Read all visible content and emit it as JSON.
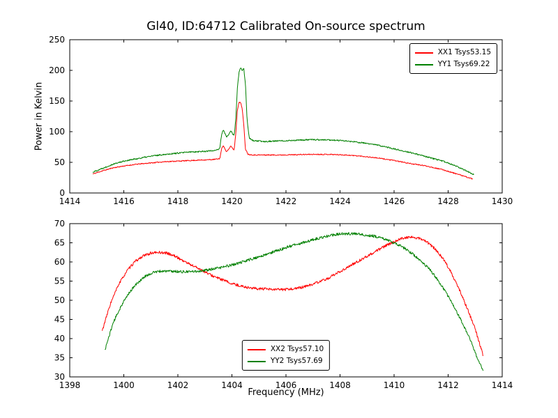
{
  "figure": {
    "background": "#ffffff",
    "axis_color": "#000000"
  },
  "chart_data": [
    {
      "type": "line",
      "title": "Gl40, ID:64712 Calibrated On-source spectrum",
      "xlabel": "",
      "ylabel": "Power in Kelvin",
      "xlim": [
        1414,
        1430
      ],
      "ylim": [
        0,
        250
      ],
      "xticks": [
        1414,
        1416,
        1418,
        1420,
        1422,
        1424,
        1426,
        1428,
        1430
      ],
      "yticks": [
        0,
        50,
        100,
        150,
        200,
        250
      ],
      "grid": false,
      "legend_position": "upper-right",
      "series": [
        {
          "name": "XX1 Tsys53.15",
          "color": "#ff0000",
          "x": [
            1414.85,
            1415.2,
            1415.6,
            1416,
            1416.5,
            1417,
            1417.5,
            1418,
            1418.5,
            1419,
            1419.3,
            1419.55,
            1419.62,
            1419.68,
            1419.74,
            1419.8,
            1419.88,
            1419.96,
            1420.02,
            1420.08,
            1420.14,
            1420.2,
            1420.26,
            1420.32,
            1420.38,
            1420.44,
            1420.5,
            1420.6,
            1420.8,
            1421.2,
            1421.8,
            1422.4,
            1423,
            1423.6,
            1424.2,
            1424.8,
            1425.4,
            1426,
            1426.6,
            1427.2,
            1427.8,
            1428.4,
            1428.9
          ],
          "y": [
            31,
            36,
            41,
            44,
            47,
            49,
            51,
            52,
            53,
            54,
            54.5,
            56,
            72,
            78,
            72,
            67,
            71,
            77,
            73,
            70,
            95,
            135,
            147,
            148,
            138,
            110,
            72,
            63,
            62,
            62,
            62,
            62.5,
            63,
            63,
            62,
            60,
            57,
            53,
            48,
            44,
            38,
            30,
            23
          ]
        },
        {
          "name": "YY1 Tsys69.22",
          "color": "#008000",
          "x": [
            1414.85,
            1415.2,
            1415.6,
            1416,
            1416.5,
            1417,
            1417.5,
            1418,
            1418.5,
            1419,
            1419.3,
            1419.55,
            1419.62,
            1419.68,
            1419.74,
            1419.8,
            1419.88,
            1419.96,
            1420.02,
            1420.08,
            1420.14,
            1420.2,
            1420.26,
            1420.32,
            1420.38,
            1420.44,
            1420.5,
            1420.56,
            1420.64,
            1420.8,
            1421.2,
            1421.8,
            1422.4,
            1423,
            1423.6,
            1424.2,
            1424.8,
            1425.4,
            1426,
            1426.6,
            1427.2,
            1427.8,
            1428.4,
            1428.95
          ],
          "y": [
            34,
            40,
            47,
            52,
            56,
            60,
            63,
            65,
            67,
            68,
            69,
            72,
            96,
            103,
            97,
            91,
            95,
            102,
            97,
            93,
            118,
            170,
            196,
            204,
            200,
            203,
            178,
            120,
            90,
            85,
            84,
            85,
            86,
            87,
            86.5,
            85,
            82,
            78,
            72,
            66,
            59,
            52,
            42,
            30
          ]
        }
      ]
    },
    {
      "type": "line",
      "title": "",
      "xlabel": "Frequency (MHz)",
      "ylabel": "",
      "xlim": [
        1398,
        1414
      ],
      "ylim": [
        30,
        70
      ],
      "xticks": [
        1398,
        1400,
        1402,
        1404,
        1406,
        1408,
        1410,
        1412,
        1414
      ],
      "yticks": [
        30,
        35,
        40,
        45,
        50,
        55,
        60,
        65,
        70
      ],
      "grid": false,
      "legend_position": "lower-center",
      "series": [
        {
          "name": "XX2 Tsys57.10",
          "color": "#ff0000",
          "x": [
            1399.2,
            1399.5,
            1399.8,
            1400.1,
            1400.4,
            1400.7,
            1401.0,
            1401.3,
            1401.6,
            1401.9,
            1402.2,
            1402.5,
            1402.8,
            1403.1,
            1403.4,
            1403.7,
            1404.0,
            1404.3,
            1404.6,
            1405.0,
            1405.5,
            1406.0,
            1406.5,
            1407.0,
            1407.5,
            1408.0,
            1408.5,
            1409.0,
            1409.5,
            1410.0,
            1410.3,
            1410.6,
            1410.9,
            1411.2,
            1411.5,
            1411.8,
            1412.1,
            1412.4,
            1412.7,
            1413.0,
            1413.3
          ],
          "y": [
            42,
            49,
            54,
            57.5,
            60,
            61.5,
            62.3,
            62.5,
            62.3,
            61.5,
            60.3,
            59.2,
            58.2,
            57,
            56,
            55.2,
            54.3,
            53.8,
            53.3,
            53,
            52.8,
            52.8,
            53.2,
            54.2,
            55.5,
            57.5,
            59.5,
            61.5,
            63.5,
            65.3,
            66.2,
            66.5,
            66.2,
            65.3,
            63.5,
            61,
            57.5,
            53,
            48,
            42.5,
            35.5
          ]
        },
        {
          "name": "YY2 Tsys57.69",
          "color": "#008000",
          "x": [
            1399.3,
            1399.6,
            1399.9,
            1400.2,
            1400.5,
            1400.8,
            1401.1,
            1401.4,
            1401.7,
            1402.0,
            1402.3,
            1402.6,
            1402.9,
            1403.2,
            1403.5,
            1403.8,
            1404.1,
            1404.4,
            1404.7,
            1405.0,
            1405.3,
            1405.6,
            1405.9,
            1406.2,
            1406.5,
            1406.8,
            1407.1,
            1407.4,
            1407.7,
            1408.0,
            1408.3,
            1408.6,
            1408.9,
            1409.2,
            1409.5,
            1409.8,
            1410.1,
            1410.4,
            1410.7,
            1411.0,
            1411.3,
            1411.6,
            1411.9,
            1412.2,
            1412.5,
            1412.8,
            1413.1,
            1413.3
          ],
          "y": [
            37,
            44,
            48.5,
            52,
            54.5,
            56.3,
            57.3,
            57.6,
            57.6,
            57.5,
            57.4,
            57.5,
            57.7,
            58,
            58.4,
            58.9,
            59.4,
            60,
            60.7,
            61.3,
            62,
            62.8,
            63.5,
            64.2,
            64.8,
            65.4,
            66,
            66.5,
            67,
            67.3,
            67.4,
            67.3,
            67.1,
            66.8,
            66.3,
            65.6,
            64.7,
            63.5,
            62,
            60.3,
            58.2,
            55.5,
            52.3,
            48.5,
            44.5,
            40,
            34.5,
            31.5
          ]
        }
      ]
    }
  ]
}
